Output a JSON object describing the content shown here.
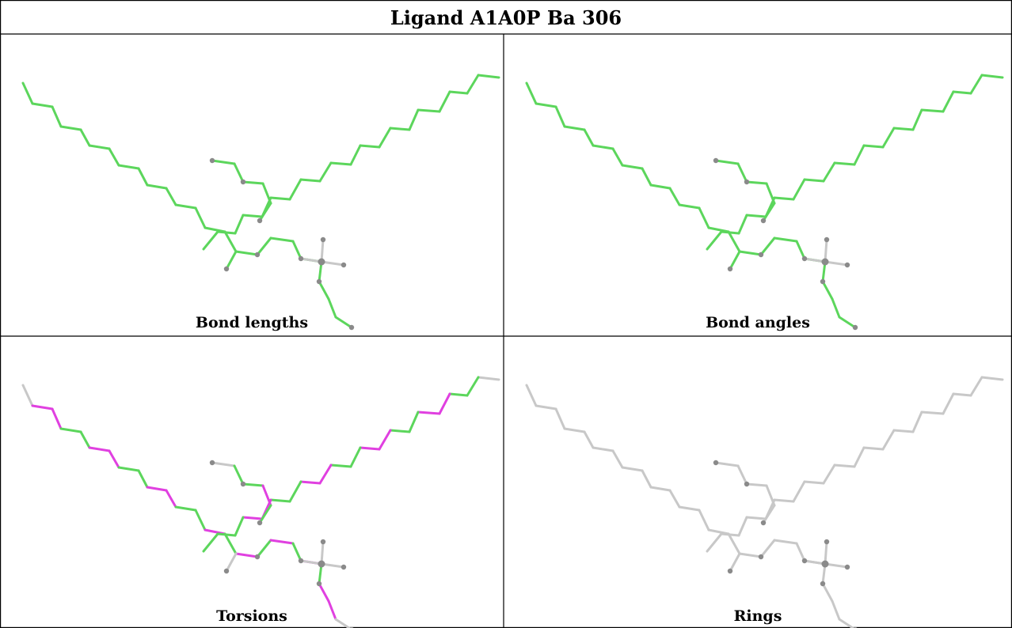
{
  "header": {
    "title": "Ligand A1A0P Ba 306"
  },
  "panels": [
    {
      "id": "bond-lengths",
      "label": "Bond lengths",
      "scheme": "bond_lengths"
    },
    {
      "id": "bond-angles",
      "label": "Bond angles",
      "scheme": "bond_angles"
    },
    {
      "id": "torsions",
      "label": "Torsions",
      "scheme": "torsions"
    },
    {
      "id": "rings",
      "label": "Rings",
      "scheme": "rings"
    }
  ],
  "colors": {
    "ok_green": "#5cd65c",
    "outlier_magenta": "#e040e0",
    "neutral_grey": "#c8c8c8",
    "atom_grey": "#8a8a8a",
    "border": "#000000"
  }
}
